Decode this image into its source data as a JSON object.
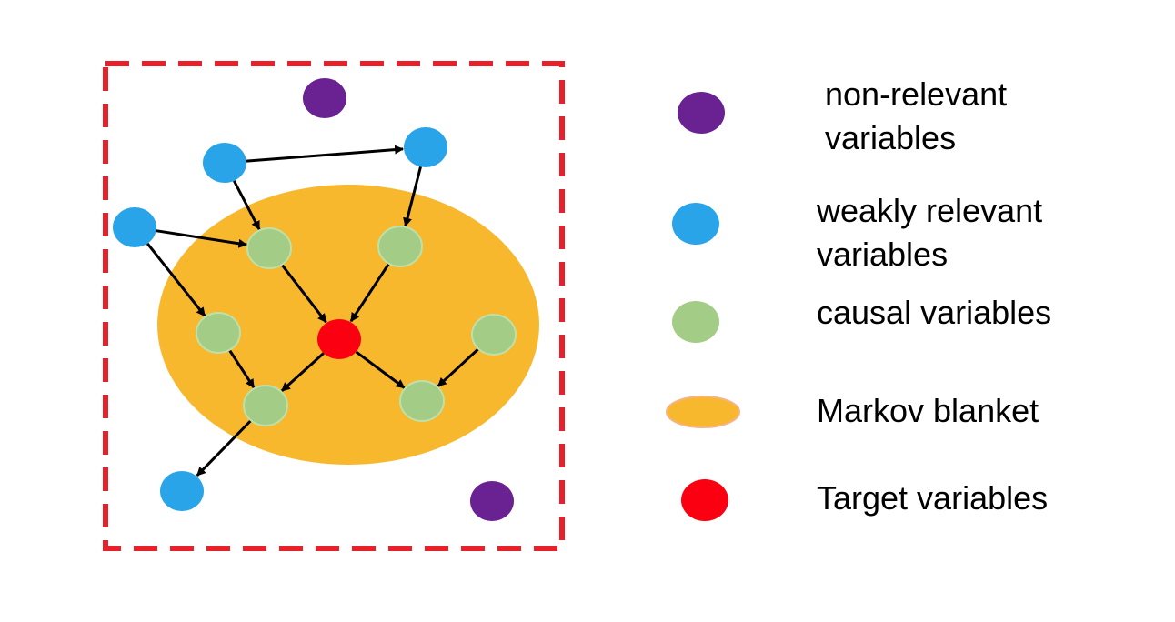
{
  "colors": {
    "frame_border": "#e8202a",
    "markov_blanket": "#f8b82e",
    "non_relevant": "#6a2292",
    "weakly_relevant": "#29a4e8",
    "causal": "#a3cd86",
    "causal_stroke": "#bfe0a8",
    "target": "#fa0010",
    "arrow": "#000000"
  },
  "legend": {
    "non_relevant": "non-relevant\n variables",
    "weakly_relevant": " weakly relevant\n variables",
    "causal": "causal variables",
    "markov_blanket": " Markov blanket",
    "target": "Target variables"
  },
  "nodes": [
    {
      "id": "n1",
      "kind": "non_relevant"
    },
    {
      "id": "n2",
      "kind": "non_relevant"
    },
    {
      "id": "w1",
      "kind": "weakly_relevant"
    },
    {
      "id": "w2",
      "kind": "weakly_relevant"
    },
    {
      "id": "w3",
      "kind": "weakly_relevant"
    },
    {
      "id": "w4",
      "kind": "weakly_relevant"
    },
    {
      "id": "c1",
      "kind": "causal"
    },
    {
      "id": "c2",
      "kind": "causal"
    },
    {
      "id": "c3",
      "kind": "causal"
    },
    {
      "id": "c4",
      "kind": "causal"
    },
    {
      "id": "c5",
      "kind": "causal"
    },
    {
      "id": "c6",
      "kind": "causal"
    },
    {
      "id": "t",
      "kind": "target"
    }
  ],
  "edges": [
    {
      "from": "w1",
      "to": "w2"
    },
    {
      "from": "w1",
      "to": "c1"
    },
    {
      "from": "w2",
      "to": "c2"
    },
    {
      "from": "w3",
      "to": "c1"
    },
    {
      "from": "w3",
      "to": "c3"
    },
    {
      "from": "c1",
      "to": "t"
    },
    {
      "from": "c2",
      "to": "t"
    },
    {
      "from": "c3",
      "to": "c5"
    },
    {
      "from": "t",
      "to": "c5"
    },
    {
      "from": "t",
      "to": "c6"
    },
    {
      "from": "c4",
      "to": "c6"
    },
    {
      "from": "c5",
      "to": "w4"
    }
  ]
}
